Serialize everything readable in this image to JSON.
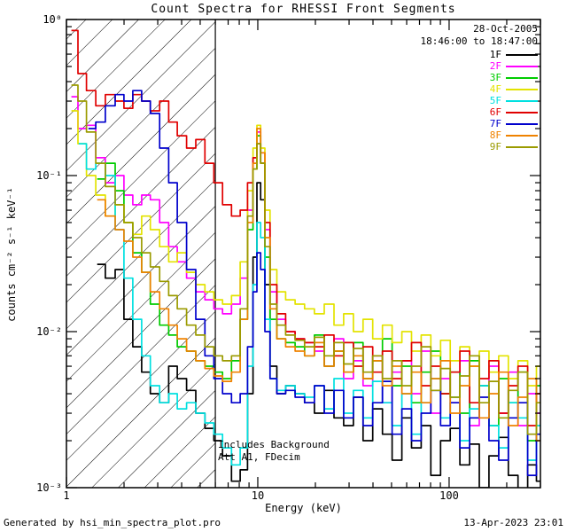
{
  "title": "Count Spectra for RHESSI Front Segments",
  "header": {
    "date": "28-Oct-2005",
    "time": "18:46:00 to 18:47:00"
  },
  "axes": {
    "xlabel": "Energy (keV)",
    "ylabel": "counts cm⁻² s⁻¹ keV⁻¹",
    "xtick_labels": [
      "1",
      "10",
      "100"
    ],
    "ytick_labels": [
      "10⁰",
      "10⁻¹",
      "10⁻²",
      "10⁻³"
    ]
  },
  "annotations": {
    "background_note": "Includes Background",
    "attenuator_note": "Att A1, FDecim"
  },
  "footer": {
    "generator": "Generated by hsi_min_spectra_plot.pro",
    "timestamp": "13-Apr-2023 23:01"
  },
  "chart_data": {
    "type": "line",
    "title": "Count Spectra for RHESSI Front Segments",
    "xlabel": "Energy (keV)",
    "ylabel": "counts cm-2 s-1 keV-1",
    "xscale": "log",
    "yscale": "log",
    "xlim": [
      1,
      300
    ],
    "ylim": [
      0.001,
      1
    ],
    "xticks": [
      1,
      10,
      100
    ],
    "yticks": [
      1,
      0.1,
      0.01,
      0.001
    ],
    "grid": false,
    "legend_position": "upper right",
    "hatch_region_end_kev": 6.0,
    "step_mode": true,
    "x": [
      1.1,
      1.2,
      1.35,
      1.5,
      1.7,
      1.9,
      2.1,
      2.35,
      2.6,
      2.9,
      3.25,
      3.6,
      4.0,
      4.5,
      5.0,
      5.6,
      6.2,
      6.9,
      7.7,
      8.5,
      9.2,
      9.7,
      10.1,
      10.6,
      11.2,
      12.0,
      13.2,
      14.8,
      16.6,
      18.6,
      21.0,
      23.6,
      26.5,
      29.8,
      33.5,
      37.6,
      42.3,
      47.5,
      53.4,
      60.0,
      67.4,
      75.7,
      85.1,
      95.6,
      107.4,
      120.7,
      135.6,
      152.4,
      171.2,
      192.4,
      216.1,
      242.8,
      272.8,
      300.0
    ],
    "series": [
      {
        "name": "1F",
        "color": "#000000",
        "values": [
          null,
          null,
          null,
          0.027,
          0.022,
          0.025,
          0.012,
          0.008,
          0.0055,
          0.004,
          0.0035,
          0.006,
          0.005,
          0.0042,
          0.003,
          0.0024,
          0.002,
          0.0016,
          0.0011,
          0.0013,
          0.004,
          0.03,
          0.09,
          0.07,
          0.02,
          0.006,
          0.004,
          0.0045,
          0.004,
          0.0035,
          0.003,
          0.0042,
          0.0028,
          0.0025,
          0.0038,
          0.002,
          0.0032,
          0.0022,
          0.0015,
          0.0028,
          0.0018,
          0.0025,
          0.0012,
          0.002,
          0.0024,
          0.0014,
          0.0019,
          0.001,
          0.0016,
          0.0021,
          0.0012,
          0.0009,
          0.0014,
          0.0011
        ]
      },
      {
        "name": "2F",
        "color": "#ff00ff",
        "values": [
          0.32,
          0.2,
          0.21,
          0.13,
          0.09,
          0.1,
          0.075,
          0.065,
          0.075,
          0.07,
          0.05,
          0.035,
          0.028,
          0.022,
          0.018,
          0.016,
          0.014,
          0.013,
          0.015,
          0.022,
          0.06,
          0.13,
          0.19,
          0.14,
          0.045,
          0.018,
          0.012,
          0.01,
          0.009,
          0.0085,
          0.0075,
          0.006,
          0.009,
          0.005,
          0.0065,
          0.0045,
          0.007,
          0.0035,
          0.0055,
          0.0065,
          0.004,
          0.0075,
          0.003,
          0.005,
          0.0035,
          0.0065,
          0.0025,
          0.0045,
          0.006,
          0.003,
          0.0055,
          0.0025,
          0.004,
          0.003
        ]
      },
      {
        "name": "3F",
        "color": "#00cc00",
        "values": [
          null,
          null,
          null,
          0.095,
          0.12,
          0.08,
          0.05,
          0.032,
          0.024,
          0.015,
          0.011,
          0.0095,
          0.008,
          0.0075,
          0.0065,
          0.006,
          0.0055,
          0.005,
          0.0065,
          0.012,
          0.045,
          0.11,
          0.18,
          0.12,
          0.03,
          0.012,
          0.009,
          0.0085,
          0.008,
          0.007,
          0.0095,
          0.006,
          0.0075,
          0.0055,
          0.0085,
          0.005,
          0.0065,
          0.009,
          0.0045,
          0.006,
          0.0035,
          0.0055,
          0.0075,
          0.004,
          0.0055,
          0.003,
          0.0065,
          0.0045,
          0.0025,
          0.005,
          0.0035,
          0.0055,
          0.002,
          0.0045
        ]
      },
      {
        "name": "4F",
        "color": "#e3e300",
        "values": [
          0.26,
          0.16,
          0.1,
          0.075,
          0.055,
          0.065,
          0.05,
          0.042,
          0.055,
          0.045,
          0.035,
          0.028,
          0.032,
          0.024,
          0.02,
          0.018,
          0.016,
          0.015,
          0.017,
          0.028,
          0.08,
          0.15,
          0.21,
          0.15,
          0.06,
          0.025,
          0.018,
          0.016,
          0.015,
          0.014,
          0.013,
          0.015,
          0.011,
          0.013,
          0.01,
          0.012,
          0.009,
          0.011,
          0.0085,
          0.01,
          0.0075,
          0.0095,
          0.007,
          0.0088,
          0.0065,
          0.008,
          0.006,
          0.0075,
          0.0055,
          0.007,
          0.005,
          0.0065,
          0.0045,
          0.006
        ]
      },
      {
        "name": "5F",
        "color": "#00e0e0",
        "values": [
          null,
          0.16,
          0.11,
          0.12,
          0.1,
          0.045,
          0.022,
          0.012,
          0.007,
          0.0045,
          0.0035,
          0.004,
          0.0032,
          0.0035,
          0.003,
          0.0026,
          0.0022,
          0.0018,
          0.0014,
          0.0018,
          0.006,
          0.02,
          0.05,
          0.04,
          0.012,
          0.005,
          0.0042,
          0.0045,
          0.004,
          0.0038,
          0.0045,
          0.0032,
          0.005,
          0.003,
          0.0042,
          0.0028,
          0.0048,
          0.0035,
          0.0025,
          0.004,
          0.0022,
          0.0035,
          0.005,
          0.0028,
          0.0038,
          0.002,
          0.0032,
          0.0045,
          0.0025,
          0.0018,
          0.0035,
          0.0028,
          0.0015,
          0.0025
        ]
      },
      {
        "name": "6F",
        "color": "#e00000",
        "values": [
          0.85,
          0.45,
          0.35,
          0.28,
          0.33,
          0.3,
          0.27,
          0.33,
          0.3,
          0.26,
          0.3,
          0.22,
          0.18,
          0.15,
          0.17,
          0.12,
          0.09,
          0.065,
          0.055,
          0.06,
          0.09,
          0.13,
          0.16,
          0.12,
          0.05,
          0.02,
          0.013,
          0.01,
          0.009,
          0.0085,
          0.008,
          0.0095,
          0.007,
          0.0085,
          0.006,
          0.008,
          0.0055,
          0.0075,
          0.005,
          0.0065,
          0.0085,
          0.0045,
          0.006,
          0.004,
          0.0055,
          0.0075,
          0.0035,
          0.005,
          0.0065,
          0.003,
          0.0045,
          0.006,
          0.0025,
          0.004
        ]
      },
      {
        "name": "7F",
        "color": "#0000cc",
        "values": [
          null,
          null,
          0.2,
          0.22,
          0.28,
          0.33,
          0.3,
          0.35,
          0.3,
          0.25,
          0.15,
          0.09,
          0.05,
          0.025,
          0.012,
          0.007,
          0.005,
          0.004,
          0.0035,
          0.004,
          0.008,
          0.018,
          0.032,
          0.025,
          0.01,
          0.005,
          0.004,
          0.0042,
          0.0038,
          0.0035,
          0.0045,
          0.003,
          0.0042,
          0.0028,
          0.0038,
          0.0025,
          0.0035,
          0.0048,
          0.0022,
          0.0032,
          0.002,
          0.003,
          0.0042,
          0.0025,
          0.0035,
          0.0018,
          0.0028,
          0.0038,
          0.002,
          0.0015,
          0.0028,
          0.0035,
          0.0012,
          0.0022
        ]
      },
      {
        "name": "8F",
        "color": "#ef8200",
        "values": [
          null,
          null,
          null,
          0.07,
          0.055,
          0.045,
          0.038,
          0.03,
          0.024,
          0.018,
          0.014,
          0.011,
          0.009,
          0.0075,
          0.0065,
          0.0058,
          0.0052,
          0.0048,
          0.0055,
          0.012,
          0.05,
          0.12,
          0.2,
          0.14,
          0.04,
          0.014,
          0.009,
          0.008,
          0.0075,
          0.007,
          0.0085,
          0.006,
          0.0075,
          0.0055,
          0.007,
          0.005,
          0.0065,
          0.0045,
          0.006,
          0.004,
          0.0055,
          0.0035,
          0.005,
          0.0065,
          0.003,
          0.0045,
          0.006,
          0.0028,
          0.004,
          0.0055,
          0.0025,
          0.0038,
          0.005,
          0.002
        ]
      },
      {
        "name": "9F",
        "color": "#9b9b00",
        "values": [
          0.38,
          0.3,
          0.19,
          0.12,
          0.085,
          0.065,
          0.05,
          0.04,
          0.032,
          0.026,
          0.021,
          0.017,
          0.014,
          0.011,
          0.0095,
          0.008,
          0.007,
          0.0065,
          0.007,
          0.014,
          0.055,
          0.11,
          0.16,
          0.12,
          0.035,
          0.015,
          0.011,
          0.0095,
          0.0088,
          0.008,
          0.0092,
          0.007,
          0.0085,
          0.0062,
          0.0078,
          0.0055,
          0.007,
          0.005,
          0.0065,
          0.0045,
          0.006,
          0.008,
          0.0042,
          0.0058,
          0.0038,
          0.0052,
          0.007,
          0.0035,
          0.0048,
          0.0028,
          0.0042,
          0.0055,
          0.0022,
          0.0035
        ]
      }
    ]
  }
}
